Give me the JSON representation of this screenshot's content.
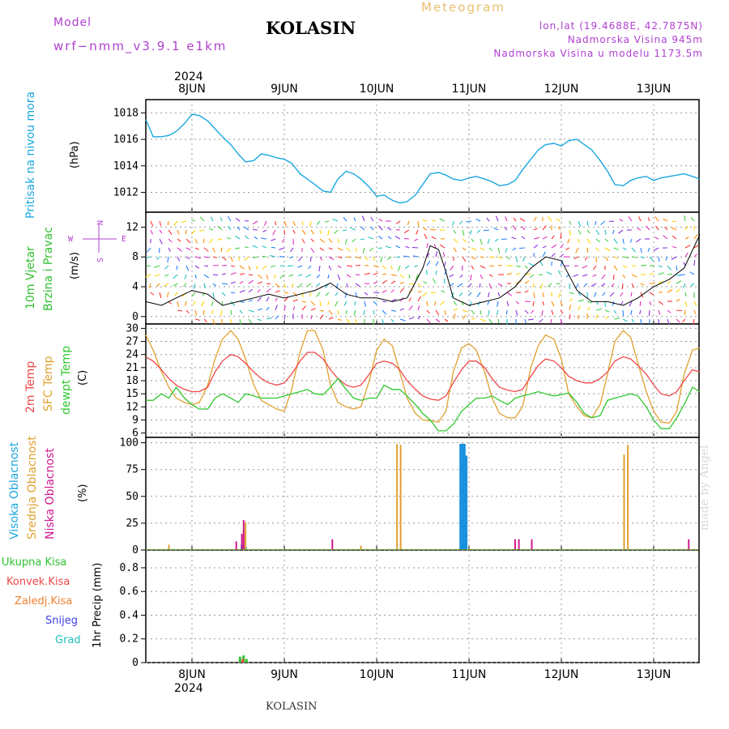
{
  "header": {
    "model_label": "Model",
    "model_name": "wrf−nmm_v3.9.1 e1km",
    "station": "KOLASIN",
    "product": "Meteogram",
    "lonlat": "lon,lat (19.4688E, 42.7875N)",
    "altitude": "Nadmorska Visina 945m",
    "model_altitude": "Nadmorska Visina u modelu 1173.5m",
    "year_top": "2024",
    "year_bottom": "2024",
    "footer_station": "KOLASIN",
    "watermark": "made by Angel"
  },
  "colors": {
    "pressure": "#1aa7e0",
    "temp2m": "#f04848",
    "sfc_temp": "#e0a030",
    "dewpt": "#30c830",
    "high_cloud": "#1a90e0",
    "mid_cloud": "#e0a030",
    "low_cloud": "#d01890",
    "total_precip": "#30c030",
    "conv_precip": "#f04848",
    "frz_precip": "#f08030",
    "snow": "#4040e0",
    "hail": "#20c0c0",
    "text_purple": "#b040d0",
    "text_gold": "#e8c070"
  },
  "dates": [
    "8JUN",
    "9JUN",
    "10JUN",
    "11JUN",
    "12JUN",
    "13JUN"
  ],
  "panels": {
    "pressure": {
      "label": "Pritisak na nivou mora",
      "unit": "(hPa)"
    },
    "wind": {
      "label1": "10m Vjetar",
      "label2": "Brzina i Pravac",
      "unit": "(m/s)",
      "compass_n": "N",
      "compass_s": "S",
      "compass_w": "W",
      "compass_e": "E"
    },
    "temp": {
      "label1": "2m Temp",
      "label2": "SFC Temp",
      "label3": "dewpt Temp",
      "unit": "(C)"
    },
    "cloud": {
      "label1": "Visoka Oblacnost",
      "label2": "Srednja Oblacnost",
      "label3": "Niska Oblacnost",
      "unit": "(%)"
    },
    "precip": {
      "unit": "1hr Precip (mm)",
      "legend": [
        "Ukupna Kisa",
        "Konvek.Kisa",
        "Zaledj.Kisa",
        "Snijeg",
        "Grad"
      ]
    }
  },
  "chart_data": [
    {
      "type": "line",
      "title": "Pritisak na nivou mora",
      "ylabel": "(hPa)",
      "ylim": [
        1010.5,
        1019
      ],
      "yticks": [
        1012,
        1014,
        1016,
        1018
      ],
      "x_unit": "days since 8JUN 00UTC",
      "series": [
        {
          "name": "Pritisak na nivou mora",
          "x": [
            -0.5,
            -0.42,
            -0.33,
            -0.25,
            -0.17,
            -0.08,
            0,
            0.08,
            0.17,
            0.25,
            0.33,
            0.42,
            0.5,
            0.58,
            0.67,
            0.75,
            0.83,
            0.92,
            1,
            1.08,
            1.17,
            1.25,
            1.33,
            1.42,
            1.5,
            1.58,
            1.67,
            1.75,
            1.83,
            1.92,
            2,
            2.08,
            2.17,
            2.25,
            2.33,
            2.42,
            2.5,
            2.58,
            2.67,
            2.75,
            2.83,
            2.92,
            3,
            3.08,
            3.17,
            3.25,
            3.33,
            3.42,
            3.5,
            3.58,
            3.67,
            3.75,
            3.83,
            3.92,
            4,
            4.08,
            4.17,
            4.25,
            4.33,
            4.42,
            4.5,
            4.58,
            4.67,
            4.75,
            4.83,
            4.92,
            5,
            5.08,
            5.17,
            5.25,
            5.33,
            5.42,
            5.5
          ],
          "values": [
            1017.5,
            1016.2,
            1016.2,
            1016.3,
            1016.6,
            1017.2,
            1017.9,
            1017.8,
            1017.4,
            1016.8,
            1016.2,
            1015.6,
            1014.9,
            1014.3,
            1014.4,
            1014.9,
            1014.8,
            1014.6,
            1014.5,
            1014.2,
            1013.4,
            1013,
            1012.6,
            1012.1,
            1012,
            1013,
            1013.6,
            1013.4,
            1013,
            1012.4,
            1011.7,
            1011.8,
            1011.4,
            1011.2,
            1011.3,
            1011.8,
            1012.6,
            1013.4,
            1013.5,
            1013.3,
            1013,
            1012.9,
            1013.1,
            1013.2,
            1013,
            1012.8,
            1012.5,
            1012.6,
            1012.9,
            1013.7,
            1014.5,
            1015.2,
            1015.6,
            1015.7,
            1015.5,
            1015.9,
            1016,
            1015.6,
            1015.2,
            1014.4,
            1013.6,
            1012.6,
            1012.5,
            1012.9,
            1013.1,
            1013.2,
            1012.9,
            1013.1,
            1013.2,
            1013.3,
            1013.4,
            1013.2,
            1013
          ]
        }
      ]
    },
    {
      "type": "line",
      "title": "10m Vjetar Brzina i Pravac",
      "ylabel": "(m/s)",
      "ylim": [
        -1,
        14
      ],
      "yticks": [
        0,
        4,
        8,
        12
      ],
      "x_unit": "days since 8JUN 00UTC",
      "series": [
        {
          "name": "10m Vjetar",
          "x": [
            -0.5,
            -0.33,
            -0.17,
            0,
            0.17,
            0.33,
            0.5,
            0.67,
            0.83,
            1,
            1.17,
            1.33,
            1.5,
            1.67,
            1.83,
            2,
            2.17,
            2.33,
            2.5,
            2.58,
            2.67,
            2.75,
            2.83,
            3,
            3.17,
            3.33,
            3.5,
            3.67,
            3.83,
            4,
            4.17,
            4.33,
            4.5,
            4.67,
            4.83,
            5,
            5.17,
            5.33,
            5.5
          ],
          "values": [
            2,
            1.5,
            2.5,
            3.5,
            3,
            1.5,
            2,
            2.5,
            3,
            2.5,
            3,
            3.5,
            4.5,
            3,
            2.5,
            2.5,
            2,
            2.5,
            6.5,
            9.5,
            9,
            6,
            2.5,
            1.5,
            2,
            2.5,
            4,
            6.5,
            8,
            7.5,
            3.5,
            2,
            2,
            1.5,
            2.5,
            4,
            5,
            6.5,
            11
          ]
        }
      ]
    },
    {
      "type": "line",
      "title": "2m Temp / SFC Temp / dewpt Temp",
      "ylabel": "(C)",
      "ylim": [
        5,
        31
      ],
      "yticks": [
        6,
        9,
        12,
        15,
        18,
        21,
        24,
        27,
        30
      ],
      "x_unit": "days since 8JUN 00UTC",
      "series": [
        {
          "name": "2m Temp",
          "x": [
            -0.5,
            -0.42,
            -0.33,
            -0.25,
            -0.17,
            -0.08,
            0,
            0.08,
            0.17,
            0.25,
            0.33,
            0.42,
            0.5,
            0.58,
            0.67,
            0.75,
            0.83,
            0.92,
            1,
            1.08,
            1.17,
            1.25,
            1.33,
            1.42,
            1.5,
            1.58,
            1.67,
            1.75,
            1.83,
            1.92,
            2,
            2.08,
            2.17,
            2.25,
            2.33,
            2.42,
            2.5,
            2.58,
            2.67,
            2.75,
            2.83,
            2.92,
            3,
            3.08,
            3.17,
            3.25,
            3.33,
            3.42,
            3.5,
            3.58,
            3.67,
            3.75,
            3.83,
            3.92,
            4,
            4.08,
            4.17,
            4.25,
            4.33,
            4.42,
            4.5,
            4.58,
            4.67,
            4.75,
            4.83,
            4.92,
            5,
            5.08,
            5.17,
            5.25,
            5.33,
            5.42,
            5.5
          ],
          "values": [
            23.5,
            22.5,
            20.5,
            18.5,
            17,
            16,
            15.5,
            15.5,
            16.5,
            20,
            22.5,
            24,
            23.5,
            22,
            20,
            18.5,
            17.5,
            17,
            17.5,
            19.5,
            22.5,
            24.5,
            24.5,
            23,
            20.5,
            18.5,
            17,
            16.5,
            17,
            19.5,
            22,
            22.5,
            22,
            20.5,
            18,
            16,
            14.5,
            13.8,
            13.5,
            14.5,
            17.5,
            20.5,
            22.5,
            22.5,
            21,
            18.5,
            16.5,
            15.8,
            15.5,
            16,
            19,
            21.5,
            23,
            22.5,
            21,
            19,
            18,
            17.5,
            17.5,
            18.5,
            20,
            22.5,
            23.5,
            23,
            21.5,
            19.5,
            17,
            15,
            14.5,
            15.5,
            18,
            20.5,
            20
          ]
        },
        {
          "name": "SFC Temp",
          "x": [
            -0.5,
            -0.42,
            -0.33,
            -0.25,
            -0.17,
            -0.08,
            0,
            0.08,
            0.17,
            0.25,
            0.33,
            0.42,
            0.5,
            0.58,
            0.67,
            0.75,
            0.83,
            0.92,
            1,
            1.08,
            1.17,
            1.25,
            1.33,
            1.42,
            1.5,
            1.58,
            1.67,
            1.75,
            1.83,
            1.92,
            2,
            2.08,
            2.17,
            2.25,
            2.33,
            2.42,
            2.5,
            2.58,
            2.67,
            2.75,
            2.83,
            2.92,
            3,
            3.08,
            3.17,
            3.25,
            3.33,
            3.42,
            3.5,
            3.58,
            3.67,
            3.75,
            3.83,
            3.92,
            4,
            4.08,
            4.17,
            4.25,
            4.33,
            4.42,
            4.5,
            4.58,
            4.67,
            4.75,
            4.83,
            4.92,
            5,
            5.08,
            5.17,
            5.25,
            5.33,
            5.42,
            5.5
          ],
          "values": [
            28.5,
            25,
            20,
            16.5,
            14,
            13,
            12.5,
            13,
            17,
            23,
            27.5,
            29.5,
            27.5,
            23,
            17,
            13.5,
            12.5,
            11.5,
            11,
            16,
            24.5,
            29.5,
            29.5,
            25,
            17,
            13,
            12,
            11.5,
            12,
            18,
            25,
            27.5,
            26,
            20,
            14,
            10.5,
            9,
            8.8,
            8.5,
            11,
            20,
            25.5,
            26.5,
            25,
            20,
            14,
            10.5,
            9.5,
            9.5,
            12,
            21,
            26,
            28.5,
            27.5,
            23,
            15,
            12,
            10,
            9.5,
            12.5,
            19.5,
            27,
            29.5,
            28,
            22,
            15.5,
            11,
            8.5,
            8.3,
            11,
            19.5,
            25,
            25.5
          ]
        },
        {
          "name": "dewpt Temp",
          "x": [
            -0.5,
            -0.42,
            -0.33,
            -0.25,
            -0.17,
            -0.08,
            0,
            0.08,
            0.17,
            0.25,
            0.33,
            0.42,
            0.5,
            0.58,
            0.67,
            0.75,
            0.83,
            0.92,
            1,
            1.08,
            1.17,
            1.25,
            1.33,
            1.42,
            1.5,
            1.58,
            1.67,
            1.75,
            1.83,
            1.92,
            2,
            2.08,
            2.17,
            2.25,
            2.33,
            2.42,
            2.5,
            2.58,
            2.67,
            2.75,
            2.83,
            2.92,
            3,
            3.08,
            3.17,
            3.25,
            3.33,
            3.42,
            3.5,
            3.58,
            3.67,
            3.75,
            3.83,
            3.92,
            4,
            4.08,
            4.17,
            4.25,
            4.33,
            4.42,
            4.5,
            4.58,
            4.67,
            4.75,
            4.83,
            4.92,
            5,
            5.08,
            5.17,
            5.25,
            5.33,
            5.42,
            5.5
          ],
          "values": [
            13.5,
            13.5,
            15,
            14,
            16.5,
            14,
            12.5,
            11.5,
            11.5,
            14,
            15,
            14,
            13,
            15,
            14.5,
            14,
            14,
            14,
            14.5,
            15,
            15.5,
            16,
            15,
            14.8,
            16.5,
            18.5,
            16,
            14,
            13.5,
            14,
            14,
            17,
            16,
            16,
            14.5,
            12.5,
            10.5,
            9,
            6.5,
            6.5,
            8,
            11,
            12.5,
            14,
            14,
            14.5,
            13.5,
            12.5,
            14,
            14.5,
            15,
            15.5,
            15,
            14.5,
            14.8,
            15.2,
            13,
            10.5,
            9.5,
            10,
            13.5,
            14,
            14.5,
            15,
            14.5,
            12,
            9,
            7,
            7,
            9.5,
            12.5,
            16.5,
            15.5
          ]
        }
      ]
    },
    {
      "type": "bar",
      "title": "Visoka / Srednja / Niska Oblacnost",
      "ylabel": "(%)",
      "ylim": [
        0,
        105
      ],
      "yticks": [
        0,
        25,
        50,
        75,
        100
      ],
      "x_unit": "days since 8JUN 00UTC",
      "series": [
        {
          "name": "Visoka Oblacnost",
          "x": [
            0.54,
            0.58,
            2.91,
            2.93,
            2.95,
            2.97
          ],
          "values": [
            5,
            3,
            99,
            99,
            99,
            88
          ]
        },
        {
          "name": "Srednja Oblacnost",
          "x": [
            -0.25,
            0.56,
            0.58,
            1.83,
            2.22,
            2.26,
            4.68,
            4.72
          ],
          "values": [
            5,
            18,
            26,
            4,
            99,
            98,
            89,
            98
          ]
        },
        {
          "name": "Niska Oblacnost",
          "x": [
            0.48,
            0.54,
            0.56,
            1.52,
            3.5,
            3.54,
            3.68,
            5.38
          ],
          "values": [
            8,
            15,
            28,
            10,
            10,
            10,
            10,
            10
          ]
        }
      ]
    },
    {
      "type": "bar",
      "title": "1hr Precip",
      "ylabel": "1hr Precip (mm)",
      "ylim": [
        0,
        0.95
      ],
      "yticks": [
        0,
        0.2,
        0.4,
        0.6,
        0.8
      ],
      "x_unit": "days since 8JUN 00UTC",
      "series": [
        {
          "name": "Ukupna Kisa",
          "x": [
            0.52,
            0.56,
            0.59
          ],
          "values": [
            0.05,
            0.06,
            0.03
          ]
        },
        {
          "name": "Konvek.Kisa",
          "x": [
            0.55
          ],
          "values": [
            0.03
          ]
        }
      ]
    }
  ]
}
